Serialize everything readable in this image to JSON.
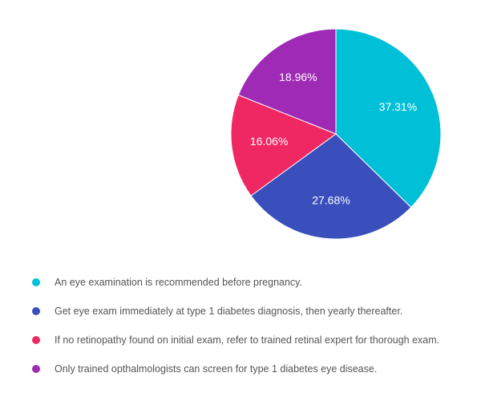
{
  "chart_data": {
    "type": "pie",
    "categories": [
      "An eye examination is recommended before pregnancy.",
      "Get eye exam immediately at type 1 diabetes diagnosis, then yearly thereafter.",
      "If no retinopathy found on initial exam, refer to trained retinal expert for thorough exam.",
      "Only trained opthalmologists can screen for type 1 diabetes eye disease."
    ],
    "values": [
      37.31,
      27.68,
      16.06,
      18.96
    ],
    "value_labels": [
      "37.31%",
      "27.68%",
      "16.06%",
      "18.96%"
    ],
    "colors": [
      "#00c0d8",
      "#3a4ebc",
      "#ef2762",
      "#9e2ab6"
    ],
    "start_angle_deg": 0,
    "direction": "clockwise",
    "legend_position": "bottom-left"
  }
}
